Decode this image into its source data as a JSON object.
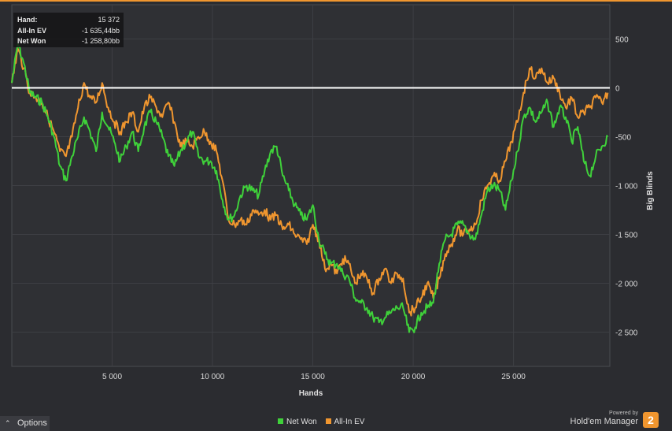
{
  "tooltip": {
    "hand_label": "Hand:",
    "hand_value": "15 372",
    "ev_label": "All-In EV",
    "ev_value": "-1 635,44bb",
    "won_label": "Net Won",
    "won_value": "-1 258,80bb"
  },
  "options": {
    "arrow": "⌃",
    "label": "Options"
  },
  "brand": {
    "powered": "Powered by",
    "name": "Hold'em Manager",
    "badge": "2"
  },
  "colors": {
    "net_won": "#3fd13a",
    "all_in_ev": "#f0962f",
    "zero_line": "#ffffff",
    "accent": "#f0962f"
  },
  "chart_data": {
    "type": "line",
    "xlabel": "Hands",
    "ylabel": "Big Blinds",
    "xlim": [
      0,
      29800
    ],
    "ylim": [
      -2850,
      850
    ],
    "xticks": [
      5000,
      10000,
      15000,
      20000,
      25000
    ],
    "xtick_labels": [
      "5 000",
      "10 000",
      "15 000",
      "20 000",
      "25 000"
    ],
    "yticks": [
      500,
      0,
      -500,
      -1000,
      -1500,
      -2000,
      -2500
    ],
    "ytick_labels": [
      "500",
      "0",
      "-500",
      "-1 000",
      "-1 500",
      "-2 000",
      "-2 500"
    ],
    "grid": true,
    "legend_position": "bottom-center",
    "zero_line": 0,
    "series": [
      {
        "name": "Net Won",
        "color": "#3fd13a",
        "x": [
          0,
          300,
          600,
          900,
          1200,
          1500,
          1800,
          2100,
          2400,
          2700,
          3000,
          3300,
          3600,
          3900,
          4200,
          4500,
          4800,
          5100,
          5400,
          5700,
          6000,
          6300,
          6600,
          6900,
          7200,
          7500,
          7800,
          8100,
          8400,
          8700,
          9000,
          9300,
          9600,
          9900,
          10200,
          10500,
          10800,
          11100,
          11400,
          11700,
          12000,
          12300,
          12600,
          12900,
          13200,
          13500,
          13800,
          14100,
          14400,
          14700,
          15000,
          15300,
          15600,
          15900,
          16200,
          16500,
          16800,
          17100,
          17400,
          17700,
          18000,
          18300,
          18600,
          18900,
          19200,
          19500,
          19800,
          20100,
          20400,
          20700,
          21000,
          21300,
          21600,
          21900,
          22200,
          22500,
          22800,
          23100,
          23400,
          23700,
          24000,
          24300,
          24600,
          24900,
          25200,
          25500,
          25800,
          26100,
          26400,
          26700,
          27000,
          27300,
          27600,
          27900,
          28200,
          28500,
          28800,
          29100,
          29400,
          29700
        ],
        "y": [
          50,
          450,
          250,
          -50,
          -100,
          -150,
          -300,
          -500,
          -800,
          -950,
          -700,
          -500,
          -300,
          -450,
          -650,
          -250,
          -400,
          -550,
          -750,
          -600,
          -450,
          -650,
          -400,
          -250,
          -350,
          -500,
          -700,
          -800,
          -650,
          -550,
          -450,
          -700,
          -750,
          -750,
          -850,
          -1150,
          -1350,
          -1300,
          -1100,
          -1000,
          -1050,
          -1100,
          -850,
          -650,
          -600,
          -900,
          -1050,
          -1200,
          -1300,
          -1350,
          -1200,
          -1550,
          -1700,
          -1800,
          -1800,
          -1900,
          -1950,
          -2150,
          -2200,
          -2250,
          -2350,
          -2400,
          -2350,
          -2300,
          -2250,
          -2250,
          -2500,
          -2450,
          -2300,
          -2250,
          -2200,
          -1800,
          -1550,
          -1500,
          -1400,
          -1400,
          -1500,
          -1550,
          -1300,
          -1050,
          -1000,
          -1050,
          -1250,
          -950,
          -650,
          -300,
          -200,
          -350,
          -250,
          -150,
          -400,
          -200,
          -300,
          -550,
          -400,
          -750,
          -900,
          -700,
          -600,
          -500
        ]
      },
      {
        "name": "All-In EV",
        "color": "#f0962f",
        "x": [
          0,
          300,
          600,
          900,
          1200,
          1500,
          1800,
          2100,
          2400,
          2700,
          3000,
          3300,
          3600,
          3900,
          4200,
          4500,
          4800,
          5100,
          5400,
          5700,
          6000,
          6300,
          6600,
          6900,
          7200,
          7500,
          7800,
          8100,
          8400,
          8700,
          9000,
          9300,
          9600,
          9900,
          10200,
          10500,
          10800,
          11100,
          11400,
          11700,
          12000,
          12300,
          12600,
          12900,
          13200,
          13500,
          13800,
          14100,
          14400,
          14700,
          15000,
          15300,
          15600,
          15900,
          16200,
          16500,
          16800,
          17100,
          17400,
          17700,
          18000,
          18300,
          18600,
          18900,
          19200,
          19500,
          19800,
          20100,
          20400,
          20700,
          21000,
          21300,
          21600,
          21900,
          22200,
          22500,
          22800,
          23100,
          23400,
          23700,
          24000,
          24300,
          24600,
          24900,
          25200,
          25500,
          25800,
          26100,
          26400,
          26700,
          27000,
          27300,
          27600,
          27900,
          28200,
          28500,
          28800,
          29100,
          29400,
          29700
        ],
        "y": [
          50,
          400,
          200,
          -50,
          -100,
          -150,
          -300,
          -450,
          -650,
          -700,
          -500,
          -200,
          50,
          -100,
          -150,
          50,
          -200,
          -350,
          -450,
          -350,
          -250,
          -450,
          -200,
          -100,
          -200,
          -300,
          -150,
          -350,
          -600,
          -550,
          -600,
          -500,
          -450,
          -550,
          -650,
          -950,
          -1350,
          -1400,
          -1350,
          -1400,
          -1250,
          -1300,
          -1250,
          -1350,
          -1300,
          -1450,
          -1400,
          -1500,
          -1550,
          -1600,
          -1400,
          -1550,
          -1850,
          -1800,
          -1900,
          -1750,
          -1800,
          -2000,
          -1900,
          -1950,
          -2100,
          -1950,
          -1850,
          -2000,
          -1900,
          -1950,
          -2300,
          -2250,
          -2150,
          -2000,
          -2150,
          -1950,
          -1700,
          -1600,
          -1450,
          -1500,
          -1450,
          -1400,
          -1150,
          -1000,
          -900,
          -950,
          -750,
          -550,
          -350,
          -50,
          200,
          100,
          200,
          50,
          100,
          -50,
          -200,
          -100,
          -300,
          -250,
          -200,
          -100,
          -150,
          -50
        ]
      }
    ]
  }
}
